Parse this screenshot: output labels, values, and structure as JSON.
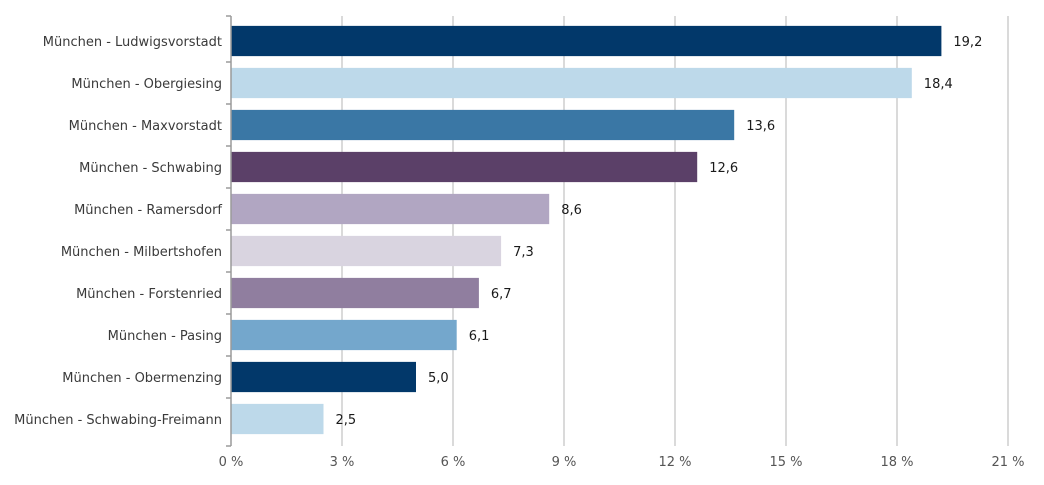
{
  "chart_data": {
    "type": "bar",
    "orientation": "horizontal",
    "title": "",
    "xlabel": "",
    "ylabel": "",
    "categories": [
      "München - Ludwigsvorstadt",
      "München - Obergiesing",
      "München - Maxvorstadt",
      "München - Schwabing",
      "München - Ramersdorf",
      "München - Milbertshofen",
      "München - Forstenried",
      "München - Pasing",
      "München - Obermenzing",
      "München - Schwabing-Freimann"
    ],
    "values": [
      19.2,
      18.4,
      13.6,
      12.6,
      8.6,
      7.3,
      6.7,
      6.1,
      5.0,
      2.5
    ],
    "value_labels": [
      "19,2",
      "18,4",
      "13,6",
      "12,6",
      "8,6",
      "7,3",
      "6,7",
      "6,1",
      "5,0",
      "2,5"
    ],
    "colors": [
      "#02386a",
      "#bdd9ea",
      "#3a77a5",
      "#5b4068",
      "#b1a6c2",
      "#d9d4e0",
      "#907e9f",
      "#74a7cc",
      "#02386a",
      "#bdd9ea"
    ],
    "xlim": [
      0,
      21
    ],
    "xticks": [
      0,
      3,
      6,
      9,
      12,
      15,
      18,
      21
    ],
    "xtick_labels": [
      "0 %",
      "3 %",
      "6 %",
      "9 %",
      "12 %",
      "15 %",
      "18 %",
      "21 %"
    ],
    "grid": "vertical",
    "legend": "none"
  }
}
